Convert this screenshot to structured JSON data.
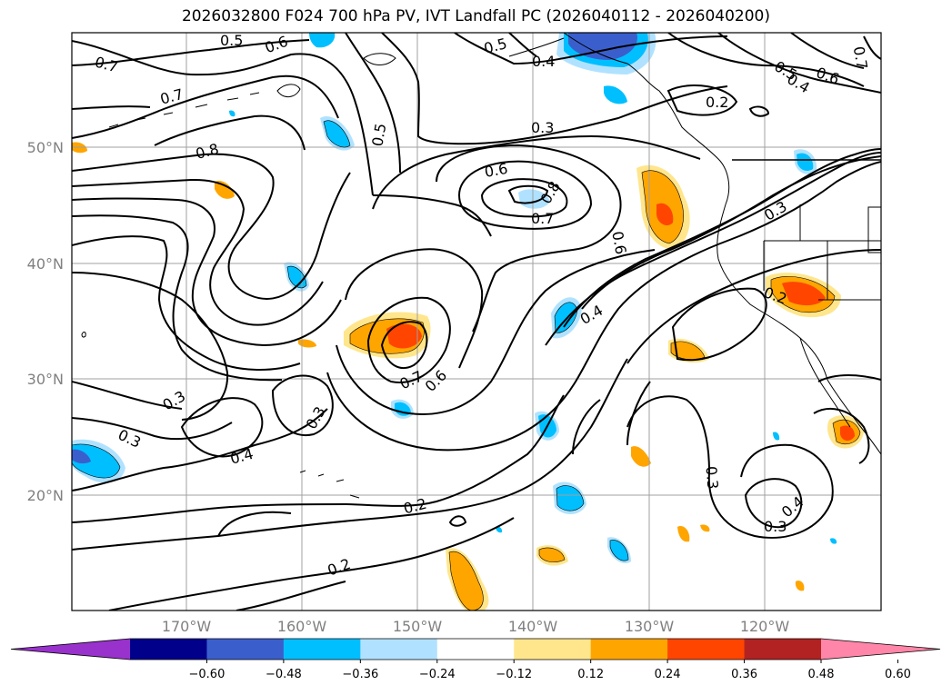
{
  "title": "2026032800 F024 700 hPa PV, IVT Landfall PC (2026040112 - 2026040200)",
  "map": {
    "latitude_labels": [
      "50°N",
      "40°N",
      "30°N",
      "20°N"
    ],
    "longitude_labels": [
      "170°W",
      "160°W",
      "150°W",
      "140°W",
      "130°W",
      "120°W"
    ]
  },
  "contour_labels": [
    "0.5",
    "0.6",
    "0.7",
    "0.7",
    "0.8",
    "0.5",
    "0.5",
    "0.4",
    "0.3",
    "0.6",
    "0.8",
    "0.7",
    "0.6",
    "0.4",
    "0.7",
    "0.6",
    "0.3",
    "0.3",
    "0.3",
    "0.4",
    "0.2",
    "0.2",
    "0.3",
    "0.4",
    "0.3",
    "0.2",
    "0.5",
    "0.4",
    "0.6",
    "0.7",
    "0.3",
    "0.2"
  ],
  "colorbar": {
    "ticks": [
      "−0.60",
      "−0.48",
      "−0.36",
      "−0.24",
      "−0.12",
      "0.12",
      "0.24",
      "0.36",
      "0.48",
      "0.60"
    ],
    "colors": [
      "#9932cc",
      "#00008b",
      "#3a5fcd",
      "#00bfff",
      "#b0e2ff",
      "#ffffff",
      "#ffe68c",
      "#ffa500",
      "#ff4500",
      "#b22222",
      "#ff86a8"
    ]
  }
}
